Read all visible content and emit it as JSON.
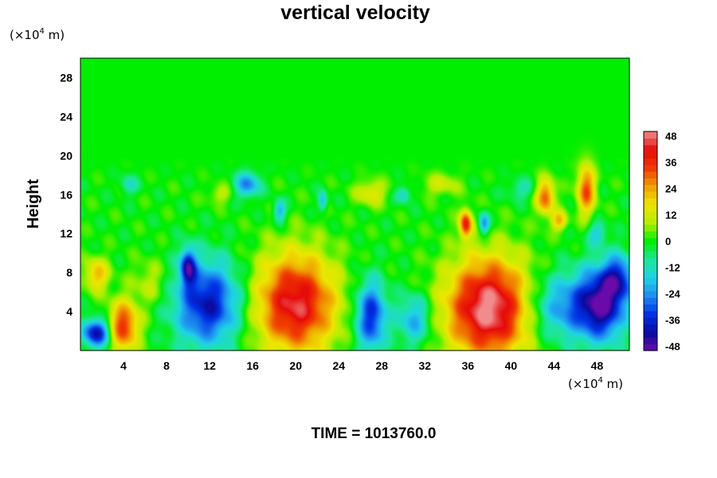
{
  "chart_data": {
    "type": "heatmap",
    "title": "vertical velocity",
    "ylabel": "Height",
    "xlabel": "",
    "units": {
      "y": {
        "pre": "(×10",
        "exp": "4",
        "post": " m)"
      },
      "x": {
        "pre": "(×10",
        "exp": "4",
        "post": " m)"
      }
    },
    "xlim": [
      0,
      51
    ],
    "ylim": [
      0,
      30
    ],
    "xticks": [
      4,
      8,
      12,
      16,
      20,
      24,
      28,
      32,
      36,
      40,
      44,
      48
    ],
    "yticks": [
      4,
      8,
      12,
      16,
      20,
      24,
      28
    ],
    "colorbar": {
      "vmin": -50,
      "vmax": 50,
      "ticks": [
        48,
        36,
        24,
        12,
        0,
        -12,
        -24,
        -36,
        -48
      ],
      "colors": [
        "#6a0aa8",
        "#0a0aa0",
        "#0032e6",
        "#1e8cf0",
        "#1ed2e6",
        "#1ee69a",
        "#00ee00",
        "#b4ee00",
        "#eee600",
        "#f0a000",
        "#f03c00",
        "#e60a0a",
        "#f08c8c"
      ]
    },
    "features": [
      {
        "x": 20.0,
        "y": 4.8,
        "sx": 2.6,
        "sy": 3.6,
        "v": 45
      },
      {
        "x": 38.0,
        "y": 4.3,
        "sx": 2.8,
        "sy": 3.6,
        "v": 52
      },
      {
        "x": 11.8,
        "y": 4.8,
        "sx": 2.1,
        "sy": 3.0,
        "v": -40
      },
      {
        "x": 4.0,
        "y": 2.5,
        "sx": 1.0,
        "sy": 1.8,
        "v": 36
      },
      {
        "x": 1.5,
        "y": 1.8,
        "sx": 0.9,
        "sy": 1.0,
        "v": -42
      },
      {
        "x": 27.0,
        "y": 3.5,
        "sx": 1.0,
        "sy": 2.5,
        "v": -36
      },
      {
        "x": 31.0,
        "y": 3.2,
        "sx": 1.1,
        "sy": 1.8,
        "v": -22
      },
      {
        "x": 45.0,
        "y": 4.5,
        "sx": 2.6,
        "sy": 2.4,
        "v": -26
      },
      {
        "x": 48.5,
        "y": 4.8,
        "sx": 1.5,
        "sy": 2.6,
        "v": -40
      },
      {
        "x": 50.0,
        "y": 7.5,
        "sx": 1.0,
        "sy": 1.6,
        "v": -28
      },
      {
        "x": 10.0,
        "y": 8.6,
        "sx": 0.5,
        "sy": 1.3,
        "v": -36
      },
      {
        "x": 1.5,
        "y": 7.8,
        "sx": 0.8,
        "sy": 1.2,
        "v": 22
      },
      {
        "x": 6.5,
        "y": 7.0,
        "sx": 1.2,
        "sy": 1.6,
        "v": 10
      },
      {
        "x": 35.8,
        "y": 13.0,
        "sx": 0.4,
        "sy": 1.0,
        "v": 38
      },
      {
        "x": 37.5,
        "y": 13.0,
        "sx": 0.35,
        "sy": 0.8,
        "v": -26
      },
      {
        "x": 43.2,
        "y": 15.8,
        "sx": 0.6,
        "sy": 1.3,
        "v": 32
      },
      {
        "x": 47.0,
        "y": 16.5,
        "sx": 0.6,
        "sy": 1.8,
        "v": 32
      },
      {
        "x": 44.5,
        "y": 13.3,
        "sx": 0.5,
        "sy": 0.7,
        "v": 22
      },
      {
        "x": 15.5,
        "y": 17.0,
        "sx": 0.8,
        "sy": 0.9,
        "v": -26
      },
      {
        "x": 18.5,
        "y": 14.3,
        "sx": 0.4,
        "sy": 0.8,
        "v": -22
      },
      {
        "x": 22.5,
        "y": 15.3,
        "sx": 0.3,
        "sy": 0.7,
        "v": -20
      },
      {
        "x": 27.0,
        "y": 16.2,
        "sx": 1.0,
        "sy": 0.9,
        "v": 16
      },
      {
        "x": 30.0,
        "y": 16.0,
        "sx": 0.5,
        "sy": 0.6,
        "v": -16
      },
      {
        "x": 4.5,
        "y": 17.0,
        "sx": 0.6,
        "sy": 0.7,
        "v": -12
      },
      {
        "x": 13.0,
        "y": 16.0,
        "sx": 0.8,
        "sy": 0.7,
        "v": 10
      },
      {
        "x": 41.0,
        "y": 16.5,
        "sx": 1.0,
        "sy": 0.8,
        "v": -10
      },
      {
        "x": 33.5,
        "y": 17.0,
        "sx": 1.2,
        "sy": 0.8,
        "v": 12
      },
      {
        "x": 48.0,
        "y": 12.0,
        "sx": 0.6,
        "sy": 0.8,
        "v": -16
      }
    ]
  },
  "footer": {
    "label": "TIME = 1013760.0"
  }
}
